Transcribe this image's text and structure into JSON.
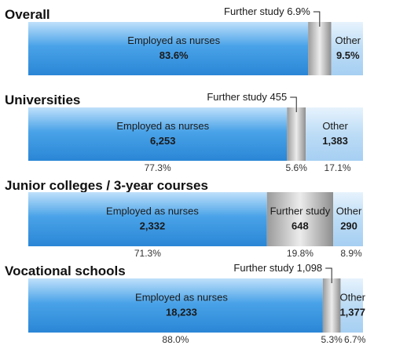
{
  "chart_data": {
    "type": "bar",
    "stacked": "horizontal-100-percent",
    "segment_labels": [
      "Employed as nurses",
      "Further study",
      "Other"
    ],
    "colors": {
      "employed": "#4aa3e8",
      "further_study": "#a8a8a8",
      "other": "#bcdcf6"
    },
    "charts": [
      {
        "title": "Overall",
        "values_pct": [
          83.6,
          6.9,
          9.5
        ],
        "labels": {
          "employed": [
            "Employed as nurses",
            "83.6%"
          ],
          "further": "Further study 6.9%",
          "other": [
            "Other",
            "9.5%"
          ]
        },
        "pct_row": null
      },
      {
        "title": "Universities",
        "values_pct": [
          77.3,
          5.6,
          17.1
        ],
        "counts": [
          6253,
          455,
          1383
        ],
        "labels": {
          "employed": [
            "Employed as nurses",
            "6,253"
          ],
          "further": "Further study 455",
          "other": [
            "Other",
            "1,383"
          ]
        },
        "pct_row": [
          "77.3%",
          "5.6%",
          "17.1%"
        ]
      },
      {
        "title": "Junior colleges / 3-year courses",
        "values_pct": [
          71.3,
          19.8,
          8.9
        ],
        "counts": [
          2332,
          648,
          290
        ],
        "labels": {
          "employed": [
            "Employed as nurses",
            "2,332"
          ],
          "further_inside": [
            "Further study",
            "648"
          ],
          "other": [
            "Other",
            "290"
          ]
        },
        "pct_row": [
          "71.3%",
          "19.8%",
          "8.9%"
        ]
      },
      {
        "title": "Vocational schools",
        "values_pct": [
          88.0,
          5.3,
          6.7
        ],
        "counts": [
          18233,
          1098,
          1377
        ],
        "labels": {
          "employed": [
            "Employed as nurses",
            "18,233"
          ],
          "further": "Further study 1,098",
          "other": [
            "Other",
            "1,377"
          ]
        },
        "pct_row": [
          "88.0%",
          "5.3%",
          "6.7%"
        ]
      }
    ]
  }
}
